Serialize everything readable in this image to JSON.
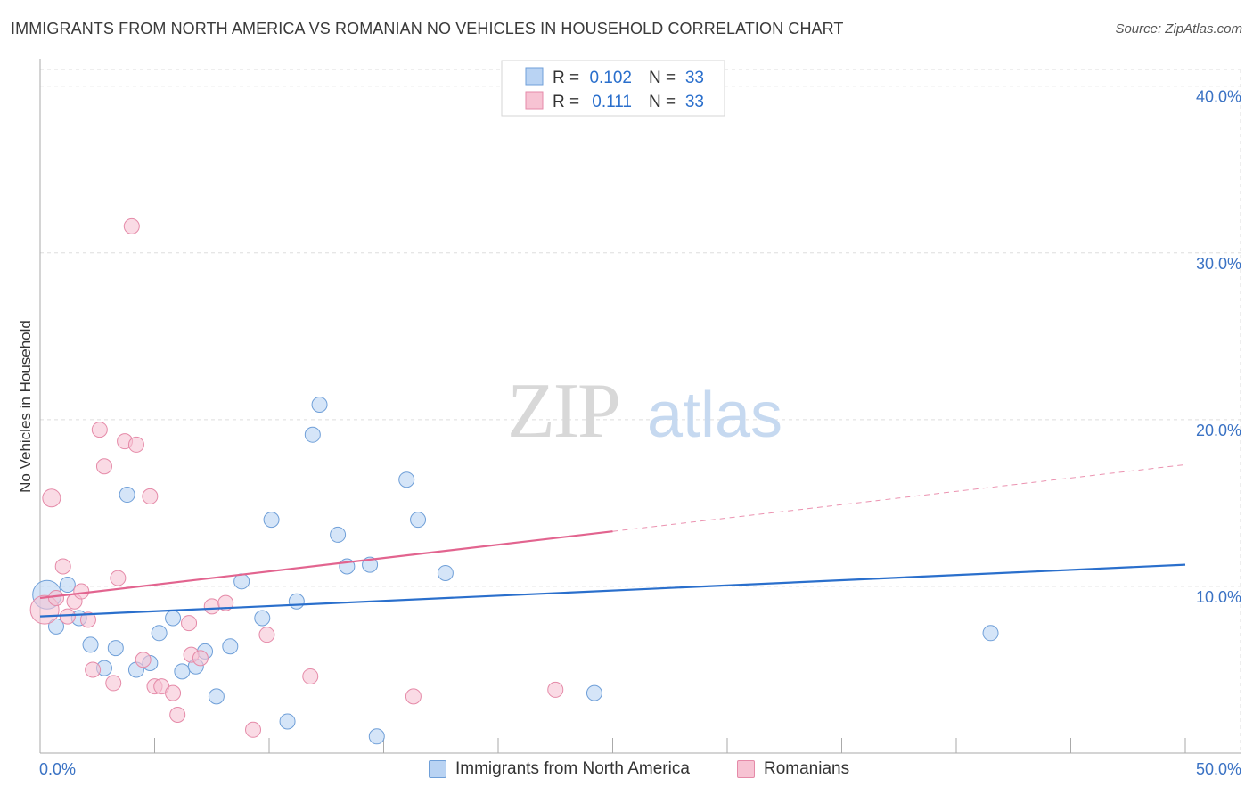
{
  "title": "IMMIGRANTS FROM NORTH AMERICA VS ROMANIAN NO VEHICLES IN HOUSEHOLD CORRELATION CHART",
  "source": "Source: ZipAtlas.com",
  "watermark": {
    "zip": "ZIP",
    "atlas": "atlas"
  },
  "legend_top": [
    {
      "r_label": "R =",
      "r_value": "0.102",
      "n_label": "N =",
      "n_value": "33"
    },
    {
      "r_label": "R =",
      "r_value": "0.111",
      "n_label": "N =",
      "n_value": "33"
    }
  ],
  "legend_bottom": [
    "Immigrants from North America",
    "Romanians"
  ],
  "colors": {
    "blue_fill": "#b9d3f3",
    "blue_stroke": "#6f9fd8",
    "blue_line": "#2a6fcc",
    "pink_fill": "#f7c3d3",
    "pink_stroke": "#e58aa8",
    "pink_line": "#e2648f",
    "tick_label": "#3a72c4",
    "grid": "#dddddd"
  },
  "chart_data": {
    "type": "scatter",
    "title": "IMMIGRANTS FROM NORTH AMERICA VS ROMANIAN NO VEHICLES IN HOUSEHOLD CORRELATION CHART",
    "xlabel": "",
    "ylabel": "No Vehicles in Household",
    "xlim": [
      0,
      50
    ],
    "ylim": [
      0,
      41
    ],
    "x_tick_labels": [
      "0.0%",
      "50.0%"
    ],
    "y_ticks": [
      10,
      20,
      30,
      40
    ],
    "y_tick_labels": [
      "10.0%",
      "20.0%",
      "30.0%",
      "40.0%"
    ],
    "grid": true,
    "legend_position": "top-center",
    "series": [
      {
        "name": "Immigrants from North America",
        "r": 0.102,
        "n": 33,
        "points": [
          [
            0.3,
            9.5
          ],
          [
            0.7,
            7.6
          ],
          [
            1.2,
            10.1
          ],
          [
            1.7,
            8.1
          ],
          [
            2.2,
            6.5
          ],
          [
            2.8,
            5.1
          ],
          [
            3.3,
            6.3
          ],
          [
            3.8,
            15.5
          ],
          [
            4.2,
            5.0
          ],
          [
            4.8,
            5.4
          ],
          [
            5.2,
            7.2
          ],
          [
            5.8,
            8.1
          ],
          [
            6.2,
            4.9
          ],
          [
            6.8,
            5.2
          ],
          [
            7.2,
            6.1
          ],
          [
            7.7,
            3.4
          ],
          [
            8.3,
            6.4
          ],
          [
            8.8,
            10.3
          ],
          [
            9.7,
            8.1
          ],
          [
            10.1,
            14.0
          ],
          [
            10.8,
            1.9
          ],
          [
            11.2,
            9.1
          ],
          [
            11.9,
            19.1
          ],
          [
            12.2,
            20.9
          ],
          [
            13.0,
            13.1
          ],
          [
            13.4,
            11.2
          ],
          [
            14.4,
            11.3
          ],
          [
            14.7,
            1.0
          ],
          [
            16.0,
            16.4
          ],
          [
            16.5,
            14.0
          ],
          [
            17.7,
            10.8
          ],
          [
            24.2,
            3.6
          ],
          [
            41.5,
            7.2
          ]
        ],
        "trend": {
          "x": [
            0,
            50
          ],
          "y": [
            8.2,
            11.3
          ]
        }
      },
      {
        "name": "Romanians",
        "r": 0.111,
        "n": 33,
        "points": [
          [
            0.2,
            8.6
          ],
          [
            0.5,
            15.3
          ],
          [
            0.7,
            9.3
          ],
          [
            1.0,
            11.2
          ],
          [
            1.2,
            8.2
          ],
          [
            1.5,
            9.1
          ],
          [
            1.8,
            9.7
          ],
          [
            2.1,
            8.0
          ],
          [
            2.3,
            5.0
          ],
          [
            2.6,
            19.4
          ],
          [
            2.8,
            17.2
          ],
          [
            3.2,
            4.2
          ],
          [
            3.4,
            10.5
          ],
          [
            3.7,
            18.7
          ],
          [
            4.0,
            31.6
          ],
          [
            4.2,
            18.5
          ],
          [
            4.5,
            5.6
          ],
          [
            4.8,
            15.4
          ],
          [
            5.0,
            4.0
          ],
          [
            5.3,
            4.0
          ],
          [
            5.8,
            3.6
          ],
          [
            6.0,
            2.3
          ],
          [
            6.6,
            5.9
          ],
          [
            6.5,
            7.8
          ],
          [
            7.0,
            5.7
          ],
          [
            7.5,
            8.8
          ],
          [
            8.1,
            9.0
          ],
          [
            9.3,
            1.4
          ],
          [
            9.9,
            7.1
          ],
          [
            11.8,
            4.6
          ],
          [
            16.3,
            3.4
          ],
          [
            22.5,
            3.8
          ],
          [
            23.3,
            39.5
          ]
        ],
        "trend": {
          "x": [
            0,
            25
          ],
          "y": [
            9.3,
            13.3
          ]
        },
        "trend_extension": {
          "x": [
            25,
            50
          ],
          "y": [
            13.3,
            17.3
          ]
        }
      }
    ]
  }
}
